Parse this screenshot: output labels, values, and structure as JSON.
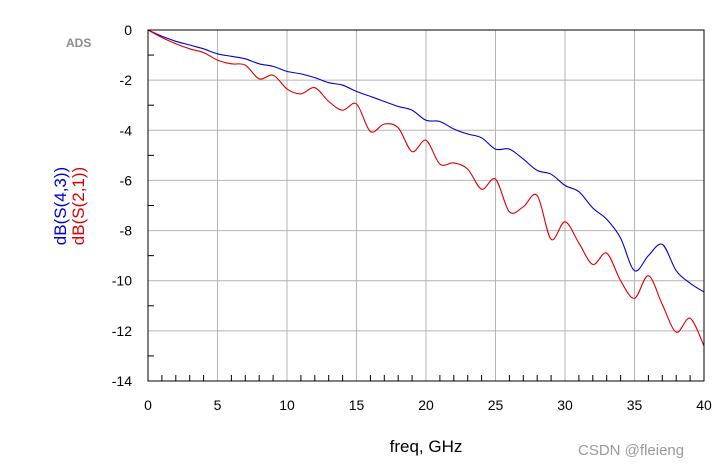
{
  "chart_data": {
    "type": "line",
    "xlabel": "freq, GHz",
    "xlim": [
      0,
      40
    ],
    "ylim": [
      -14,
      0
    ],
    "x_ticks": [
      "0",
      "5",
      "10",
      "15",
      "20",
      "25",
      "30",
      "35",
      "40"
    ],
    "y_ticks": [
      "0",
      "-2",
      "-4",
      "-6",
      "-8",
      "-10",
      "-12",
      "-14"
    ],
    "grid": true,
    "series": [
      {
        "name": "dB(S(4,3))",
        "color": "#0000cc",
        "x": [
          0,
          1,
          2,
          3,
          4,
          5,
          6,
          7,
          8,
          9,
          10,
          11,
          12,
          13,
          14,
          15,
          16,
          17,
          18,
          19,
          20,
          21,
          22,
          23,
          24,
          25,
          26,
          27,
          28,
          29,
          30,
          31,
          32,
          33,
          34,
          35,
          36,
          37,
          38,
          39,
          40
        ],
        "y": [
          0,
          -0.25,
          -0.45,
          -0.6,
          -0.75,
          -0.95,
          -1.05,
          -1.15,
          -1.35,
          -1.45,
          -1.65,
          -1.75,
          -1.9,
          -2.1,
          -2.2,
          -2.45,
          -2.65,
          -2.85,
          -3.05,
          -3.2,
          -3.6,
          -3.65,
          -3.95,
          -4.15,
          -4.3,
          -4.75,
          -4.75,
          -5.15,
          -5.6,
          -5.75,
          -6.2,
          -6.45,
          -7.1,
          -7.55,
          -8.3,
          -9.6,
          -9.0,
          -8.55,
          -9.6,
          -10.1,
          -10.45
        ]
      },
      {
        "name": "dB(S(2,1))",
        "color": "#dd0000",
        "x": [
          0,
          1,
          2,
          3,
          4,
          5,
          6,
          7,
          8,
          9,
          10,
          11,
          12,
          13,
          14,
          15,
          16,
          17,
          18,
          19,
          20,
          21,
          22,
          23,
          24,
          25,
          26,
          27,
          28,
          29,
          30,
          31,
          32,
          33,
          34,
          35,
          36,
          37,
          38,
          39,
          40
        ],
        "y": [
          0,
          -0.3,
          -0.55,
          -0.75,
          -0.9,
          -1.2,
          -1.35,
          -1.4,
          -1.95,
          -1.8,
          -2.35,
          -2.55,
          -2.3,
          -2.85,
          -3.2,
          -2.95,
          -4.05,
          -3.75,
          -3.9,
          -4.85,
          -4.4,
          -5.35,
          -5.3,
          -5.55,
          -6.35,
          -5.95,
          -7.25,
          -7.05,
          -6.6,
          -8.35,
          -7.65,
          -8.5,
          -9.35,
          -8.9,
          -10.0,
          -10.7,
          -9.8,
          -10.95,
          -12.05,
          -11.5,
          -12.6
        ]
      }
    ]
  },
  "logo_text": "ADS",
  "watermark": "CSDN @fleieng"
}
